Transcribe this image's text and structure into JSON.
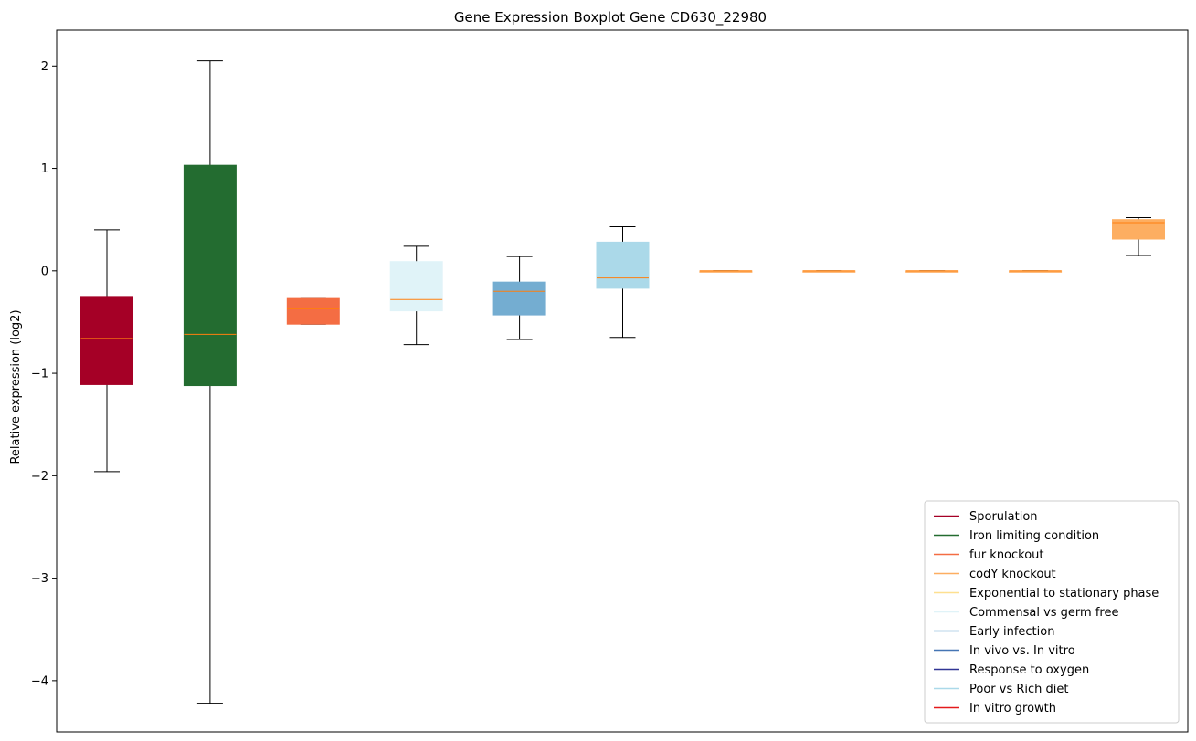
{
  "chart_data": {
    "type": "box",
    "title": "Gene Expression Boxplot Gene CD630_22980",
    "ylabel": "Relative expression (log2)",
    "ylim": [
      -4.5,
      2.35
    ],
    "yticks": [
      {
        "value": 2,
        "label": "2"
      },
      {
        "value": 1,
        "label": "1"
      },
      {
        "value": 0,
        "label": "0"
      },
      {
        "value": -1,
        "label": "−1"
      },
      {
        "value": -2,
        "label": "−2"
      },
      {
        "value": -3,
        "label": "−3"
      },
      {
        "value": -4,
        "label": "−4"
      }
    ],
    "median_color": "#ff7f0e",
    "boxes": [
      {
        "min": -1.96,
        "q1": -1.11,
        "median": -0.66,
        "q3": -0.25,
        "max": 0.4,
        "color": "#a50026"
      },
      {
        "min": -4.22,
        "q1": -1.12,
        "median": -0.62,
        "q3": 1.03,
        "max": 2.05,
        "color": "#236c30"
      },
      {
        "min": -0.52,
        "q1": -0.52,
        "median": -0.37,
        "q3": -0.27,
        "max": -0.27,
        "color": "#f46d43"
      },
      {
        "min": -0.72,
        "q1": -0.39,
        "median": -0.28,
        "q3": 0.09,
        "max": 0.24,
        "color": "#e0f3f8"
      },
      {
        "min": -0.67,
        "q1": -0.43,
        "median": -0.2,
        "q3": -0.11,
        "max": 0.14,
        "color": "#74add1"
      },
      {
        "min": -0.65,
        "q1": -0.17,
        "median": -0.07,
        "q3": 0.28,
        "max": 0.43,
        "color": "#abd9e9"
      },
      {
        "min": 0.0,
        "q1": 0.0,
        "median": 0.0,
        "q3": 0.0,
        "max": 0.0,
        "color": "#fdae61"
      },
      {
        "min": 0.0,
        "q1": 0.0,
        "median": 0.0,
        "q3": 0.0,
        "max": 0.0,
        "color": "#fdae61"
      },
      {
        "min": 0.0,
        "q1": 0.0,
        "median": 0.0,
        "q3": 0.0,
        "max": 0.0,
        "color": "#fdae61"
      },
      {
        "min": 0.0,
        "q1": 0.0,
        "median": 0.0,
        "q3": 0.0,
        "max": 0.0,
        "color": "#fdae61"
      },
      {
        "min": 0.15,
        "q1": 0.31,
        "median": 0.47,
        "q3": 0.5,
        "max": 0.52,
        "color": "#fdae61"
      }
    ],
    "legend": {
      "placement": "lower-right",
      "entries": [
        {
          "label": "Sporulation",
          "color": "#a50026"
        },
        {
          "label": "Iron limiting condition",
          "color": "#236c30"
        },
        {
          "label": "fur knockout",
          "color": "#f46d43"
        },
        {
          "label": "codY knockout",
          "color": "#fdae61"
        },
        {
          "label": "Exponential to stationary phase",
          "color": "#fee090"
        },
        {
          "label": "Commensal vs germ free",
          "color": "#e0f3f8"
        },
        {
          "label": "Early infection",
          "color": "#74add1"
        },
        {
          "label": "In vivo vs. In vitro",
          "color": "#4575b4"
        },
        {
          "label": "Response to oxygen",
          "color": "#313695"
        },
        {
          "label": "Poor vs Rich diet",
          "color": "#abd9e9"
        },
        {
          "label": "In vitro growth",
          "color": "#e41a1c"
        }
      ]
    },
    "grid": false
  }
}
